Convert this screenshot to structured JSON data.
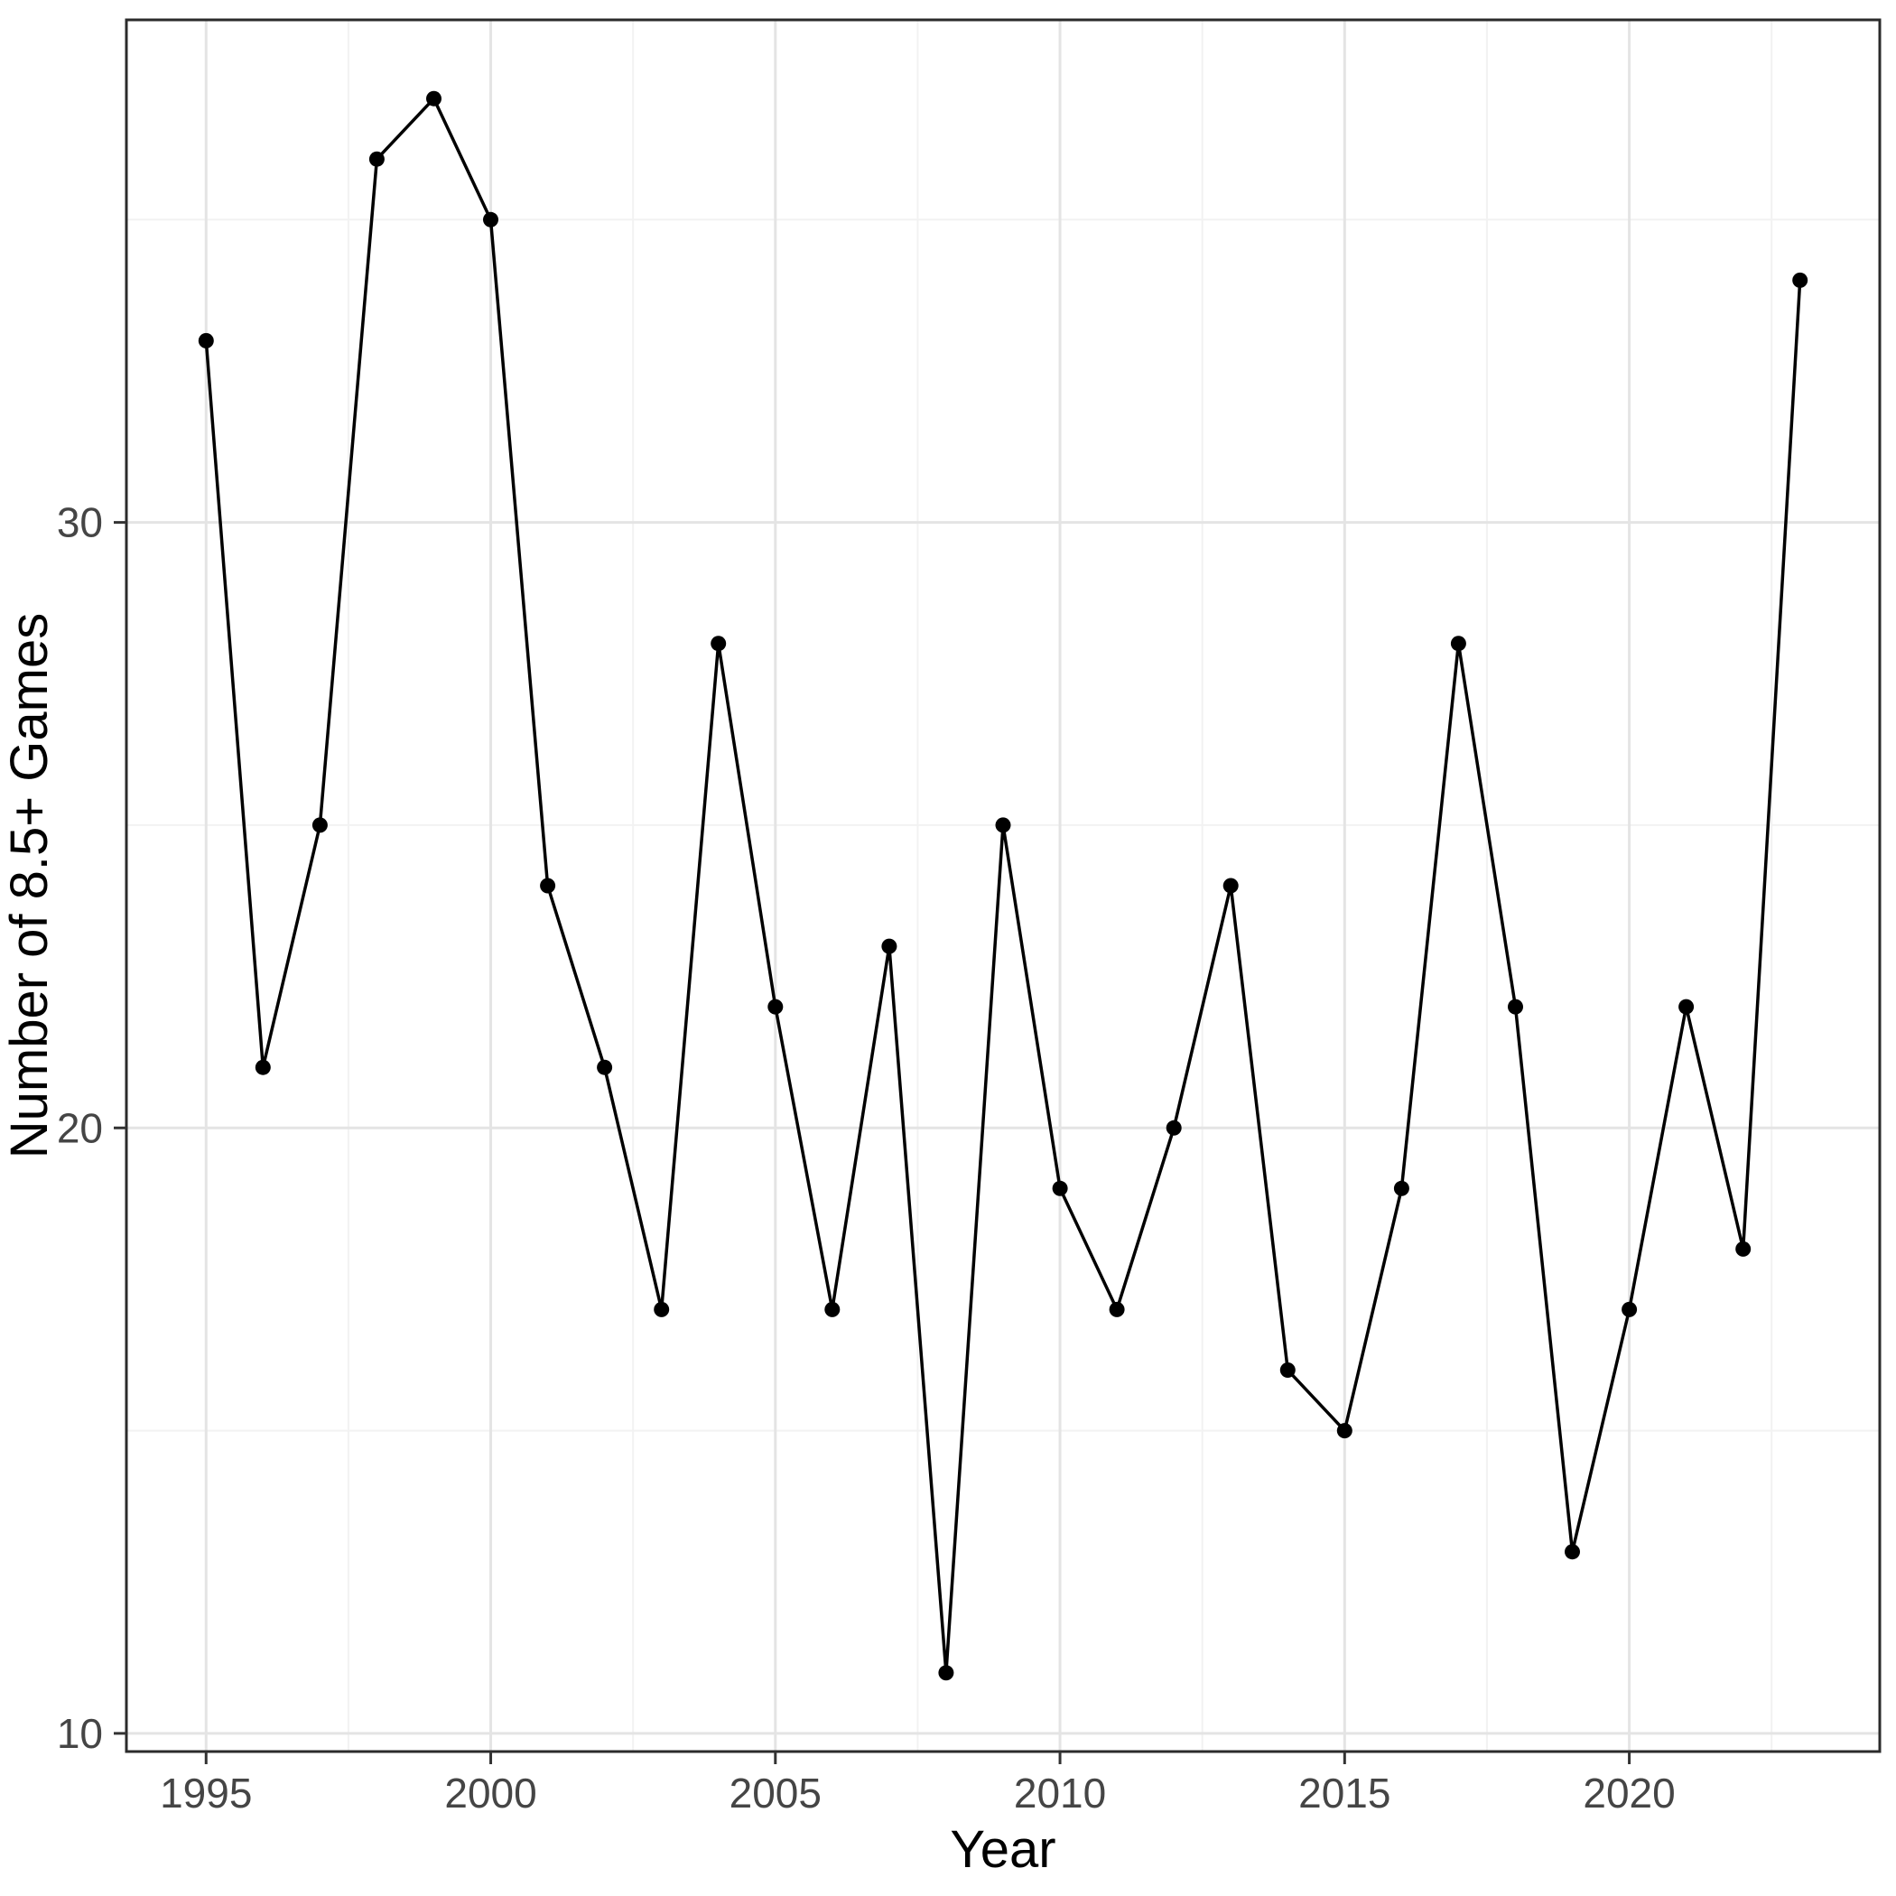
{
  "chart_data": {
    "type": "line",
    "title": "",
    "xlabel": "Year",
    "ylabel": "Number of 8.5+ Games",
    "series_name": "number-of-8.5-plus-games",
    "x": [
      1995,
      1996,
      1997,
      1998,
      1999,
      2000,
      2001,
      2002,
      2003,
      2004,
      2005,
      2006,
      2007,
      2008,
      2009,
      2010,
      2011,
      2012,
      2013,
      2014,
      2015,
      2016,
      2017,
      2018,
      2019,
      2020,
      2021,
      2022,
      2023
    ],
    "values": [
      33,
      21,
      25,
      36,
      37,
      35,
      24,
      21,
      17,
      28,
      22,
      17,
      23,
      11,
      25,
      19,
      17,
      20,
      24,
      16,
      15,
      19,
      28,
      22,
      13,
      17,
      22,
      18,
      34
    ],
    "x_domain": [
      1993.6,
      2024.4
    ],
    "y_domain": [
      9.7,
      38.3
    ],
    "x_ticks": [
      1995,
      2000,
      2005,
      2010,
      2015,
      2020
    ],
    "y_ticks": [
      10,
      20,
      30
    ],
    "x_minor_gridlines": [
      1997.5,
      2002.5,
      2007.5,
      2012.5,
      2017.5,
      2022.5
    ],
    "y_minor_gridlines": [
      15,
      25,
      35
    ],
    "grid": true,
    "legend": "none",
    "marker": "filled-circle",
    "colors": {
      "line": "#000000",
      "point": "#000000",
      "grid_major": "#e4e4e4",
      "grid_minor": "#f2f2f2",
      "panel_border": "#2b2b2b",
      "tick_mark": "#333333",
      "tick_label": "#454545",
      "axis_title": "#000000",
      "background": "#ffffff"
    }
  }
}
